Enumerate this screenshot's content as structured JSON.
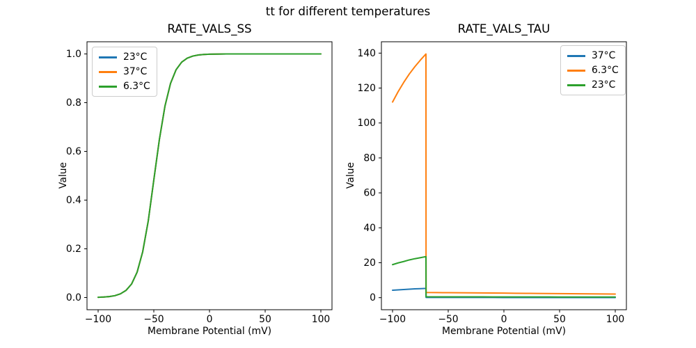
{
  "figure": {
    "suptitle": "tt for different temperatures",
    "background": "#ffffff"
  },
  "colors": {
    "blue": "#1f77b4",
    "orange": "#ff7f0e",
    "green": "#2ca02c",
    "spine": "#000000",
    "legend_border": "#cccccc",
    "text": "#000000"
  },
  "chart_data": [
    {
      "type": "line",
      "name": "rate-vals-ss",
      "title": "RATE_VALS_SS",
      "xlabel": "Membrane Potential (mV)",
      "ylabel": "Value",
      "xlim": [
        -110,
        110
      ],
      "ylim": [
        -0.05,
        1.05
      ],
      "xticks": [
        -100,
        -50,
        0,
        50,
        100
      ],
      "xticklabels": [
        "−100",
        "−50",
        "0",
        "50",
        "100"
      ],
      "yticks": [
        0,
        0.2,
        0.4,
        0.6,
        0.8,
        1.0
      ],
      "yticklabels": [
        "0.0",
        "0.2",
        "0.4",
        "0.6",
        "0.8",
        "1.0"
      ],
      "grid": false,
      "legend_position": "upper-left",
      "legend": [
        {
          "label": "23°C",
          "color": "#1f77b4"
        },
        {
          "label": "37°C",
          "color": "#ff7f0e"
        },
        {
          "label": "6.3°C",
          "color": "#2ca02c"
        }
      ],
      "x": [
        -100,
        -95,
        -90,
        -85,
        -80,
        -75,
        -70,
        -65,
        -60,
        -55,
        -50,
        -45,
        -40,
        -35,
        -30,
        -25,
        -20,
        -15,
        -10,
        -5,
        0,
        5,
        10,
        15,
        20,
        25,
        30,
        35,
        40,
        45,
        50,
        55,
        60,
        65,
        70,
        75,
        80,
        85,
        90,
        95,
        100
      ],
      "series": [
        {
          "name": "23°C",
          "id": "curve-23c",
          "color": "#1f77b4",
          "values": [
            0.001,
            0.002,
            0.0039,
            0.0077,
            0.0151,
            0.0292,
            0.0553,
            0.1041,
            0.1876,
            0.3143,
            0.4829,
            0.6489,
            0.7856,
            0.8789,
            0.9352,
            0.9663,
            0.9828,
            0.9913,
            0.9956,
            0.9978,
            0.9989,
            0.9994,
            0.9997,
            0.9999,
            0.9999,
            1.0,
            1.0,
            1.0,
            1.0,
            1.0,
            1.0,
            1.0,
            1.0,
            1.0,
            1.0,
            1.0,
            1.0,
            1.0,
            1.0,
            1.0,
            1.0
          ]
        },
        {
          "name": "37°C",
          "id": "curve-37c",
          "color": "#ff7f0e",
          "values": [
            0.001,
            0.002,
            0.0039,
            0.0077,
            0.0151,
            0.0292,
            0.0553,
            0.1041,
            0.1876,
            0.3143,
            0.4829,
            0.6489,
            0.7856,
            0.8789,
            0.9352,
            0.9663,
            0.9828,
            0.9913,
            0.9956,
            0.9978,
            0.9989,
            0.9994,
            0.9997,
            0.9999,
            0.9999,
            1.0,
            1.0,
            1.0,
            1.0,
            1.0,
            1.0,
            1.0,
            1.0,
            1.0,
            1.0,
            1.0,
            1.0,
            1.0,
            1.0,
            1.0,
            1.0
          ]
        },
        {
          "name": "6.3°C",
          "id": "curve-6-3c",
          "color": "#2ca02c",
          "values": [
            0.001,
            0.002,
            0.0039,
            0.0077,
            0.0151,
            0.0292,
            0.0553,
            0.1041,
            0.1876,
            0.3143,
            0.4829,
            0.6489,
            0.7856,
            0.8789,
            0.9352,
            0.9663,
            0.9828,
            0.9913,
            0.9956,
            0.9978,
            0.9989,
            0.9994,
            0.9997,
            0.9999,
            0.9999,
            1.0,
            1.0,
            1.0,
            1.0,
            1.0,
            1.0,
            1.0,
            1.0,
            1.0,
            1.0,
            1.0,
            1.0,
            1.0,
            1.0,
            1.0,
            1.0
          ]
        }
      ]
    },
    {
      "type": "line",
      "name": "rate-vals-tau",
      "title": "RATE_VALS_TAU",
      "xlabel": "Membrane Potential (mV)",
      "ylabel": "Value",
      "xlim": [
        -110,
        110
      ],
      "ylim": [
        -6.9,
        146.5
      ],
      "xticks": [
        -100,
        -50,
        0,
        50,
        100
      ],
      "xticklabels": [
        "−100",
        "−50",
        "0",
        "50",
        "100"
      ],
      "yticks": [
        0,
        20,
        40,
        60,
        80,
        100,
        120,
        140
      ],
      "yticklabels": [
        "0",
        "20",
        "40",
        "60",
        "80",
        "100",
        "120",
        "140"
      ],
      "grid": false,
      "legend_position": "upper-right",
      "legend": [
        {
          "label": "37°C",
          "color": "#1f77b4"
        },
        {
          "label": "6.3°C",
          "color": "#ff7f0e"
        },
        {
          "label": "23°C",
          "color": "#2ca02c"
        }
      ],
      "x": [
        -100,
        -95,
        -90,
        -85,
        -80,
        -75,
        -70,
        -69.9,
        -60,
        -50,
        -40,
        -30,
        -20,
        -10,
        0,
        10,
        20,
        30,
        40,
        50,
        60,
        70,
        80,
        90,
        100
      ],
      "series": [
        {
          "name": "37°C",
          "id": "curve-37c",
          "color": "#1f77b4",
          "values": [
            4.26,
            4.48,
            4.68,
            4.87,
            5.03,
            5.17,
            5.3,
            0.11,
            0.11,
            0.108,
            0.106,
            0.104,
            0.102,
            0.1,
            0.098,
            0.096,
            0.094,
            0.092,
            0.09,
            0.088,
            0.086,
            0.084,
            0.082,
            0.08,
            0.078
          ]
        },
        {
          "name": "6.3°C",
          "id": "curve-6-3c",
          "color": "#ff7f0e",
          "values": [
            112.0,
            117.9,
            123.2,
            128.0,
            132.2,
            136.0,
            139.5,
            2.95,
            2.9,
            2.85,
            2.8,
            2.74,
            2.69,
            2.64,
            2.59,
            2.53,
            2.48,
            2.43,
            2.38,
            2.32,
            2.27,
            2.22,
            2.17,
            2.11,
            2.06
          ]
        },
        {
          "name": "23°C",
          "id": "curve-23c",
          "color": "#2ca02c",
          "values": [
            18.9,
            19.9,
            20.7,
            21.6,
            22.3,
            22.9,
            23.5,
            0.5,
            0.49,
            0.48,
            0.47,
            0.46,
            0.45,
            0.44,
            0.44,
            0.43,
            0.42,
            0.41,
            0.4,
            0.39,
            0.38,
            0.37,
            0.37,
            0.36,
            0.35
          ]
        }
      ]
    }
  ]
}
